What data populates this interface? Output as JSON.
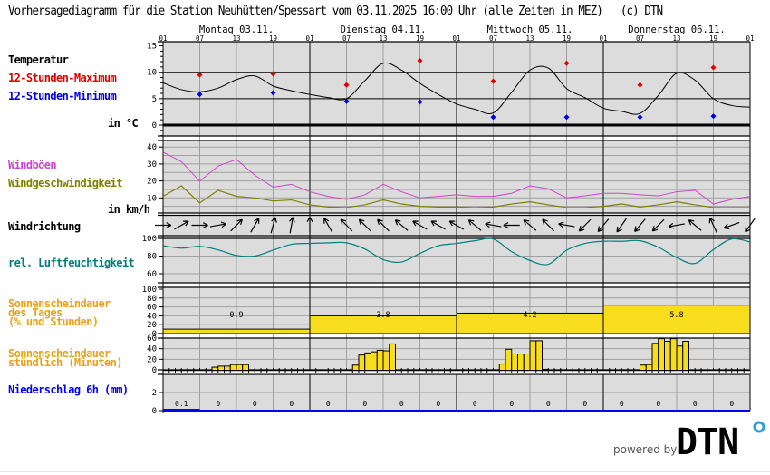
{
  "title": "Vorhersagediagramm für die Station Neuhütten/Spessart vom 03.11.2025 16:00 Uhr (alle Zeiten in MEZ)   (c) DTN",
  "days": [
    "Montag 03.11.",
    "Dienstag 04.11.",
    "Mittwoch 05.11.",
    "Donnerstag 06.11."
  ],
  "hour_ticks": [
    "01",
    "07",
    "13",
    "19",
    "01",
    "07",
    "13",
    "19",
    "01",
    "07",
    "13",
    "19",
    "01",
    "07",
    "13",
    "19",
    "01"
  ],
  "labels": {
    "temperature": "Temperatur",
    "max": "12-Stunden-Maximum",
    "min": "12-Stunden-Minimum",
    "temp_unit": "in °C",
    "gusts": "Windböen",
    "wind_speed": "Windgeschwindigkeit",
    "wind_unit": "in km/h",
    "wind_dir": "Windrichtung",
    "humidity": "rel. Luftfeuchtigkeit",
    "sun_daily": "Sonnenscheindauer\ndes Tages\n(% und Stunden)",
    "sun_hourly": "Sonnenscheindauer\nstündlich (Minuten)",
    "precip": "Niederschlag 6h (mm)"
  },
  "colors": {
    "max": "#e00000",
    "min": "#0000e0",
    "gusts": "#cc44cc",
    "wind_speed": "#808000",
    "humidity": "#008080",
    "sun_label": "#e8a317",
    "sun_fill": "#f8dc1e",
    "precip": "#0000ff",
    "panel_bg": "#dcdcdc"
  },
  "footer": {
    "powered_by": "powered by",
    "logo": "DTN"
  },
  "chart_data": {
    "type": "line",
    "times": [
      "03.11. 01:00",
      "03.11. 04:00",
      "03.11. 07:00",
      "03.11. 10:00",
      "03.11. 13:00",
      "03.11. 16:00",
      "03.11. 19:00",
      "03.11. 22:00",
      "04.11. 01:00",
      "04.11. 04:00",
      "04.11. 07:00",
      "04.11. 10:00",
      "04.11. 13:00",
      "04.11. 16:00",
      "04.11. 19:00",
      "04.11. 22:00",
      "05.11. 01:00",
      "05.11. 04:00",
      "05.11. 07:00",
      "05.11. 10:00",
      "05.11. 13:00",
      "05.11. 16:00",
      "05.11. 19:00",
      "05.11. 22:00",
      "06.11. 01:00",
      "06.11. 04:00",
      "06.11. 07:00",
      "06.11. 10:00",
      "06.11. 13:00",
      "06.11. 16:00",
      "06.11. 19:00",
      "06.11. 22:00",
      "07.11. 01:00"
    ],
    "temperature": {
      "yticks": [
        "0",
        "5",
        "10",
        "15"
      ],
      "ylim": [
        -2,
        15.5
      ],
      "values": [
        8.0,
        6.7,
        6.3,
        7.0,
        8.6,
        9.3,
        7.4,
        6.5,
        5.8,
        5.2,
        5.0,
        8.4,
        11.7,
        10.4,
        7.9,
        5.8,
        4.0,
        3.0,
        2.3,
        6.2,
        10.4,
        10.8,
        6.9,
        5.2,
        3.2,
        2.6,
        2.2,
        5.6,
        9.8,
        8.5,
        5.0,
        3.7,
        3.4
      ],
      "max_12h": [
        {
          "time": "03.11. 07:00",
          "value": 9.5
        },
        {
          "time": "03.11. 19:00",
          "value": 9.7
        },
        {
          "time": "04.11. 07:00",
          "value": 7.6
        },
        {
          "time": "04.11. 19:00",
          "value": 12.2
        },
        {
          "time": "05.11. 07:00",
          "value": 8.3
        },
        {
          "time": "05.11. 19:00",
          "value": 11.7
        },
        {
          "time": "06.11. 07:00",
          "value": 7.6
        },
        {
          "time": "06.11. 19:00",
          "value": 10.9
        }
      ],
      "min_12h": [
        {
          "time": "03.11. 07:00",
          "value": 5.8
        },
        {
          "time": "03.11. 19:00",
          "value": 6.1
        },
        {
          "time": "04.11. 07:00",
          "value": 4.5
        },
        {
          "time": "04.11. 19:00",
          "value": 4.4
        },
        {
          "time": "05.11. 07:00",
          "value": 1.5
        },
        {
          "time": "05.11. 19:00",
          "value": 1.5
        },
        {
          "time": "06.11. 07:00",
          "value": 1.5
        },
        {
          "time": "06.11. 19:00",
          "value": 1.7
        }
      ]
    },
    "wind": {
      "yticks": [
        "10",
        "20",
        "30",
        "40"
      ],
      "ylim": [
        1,
        44
      ],
      "gusts": [
        37,
        31.4,
        19.8,
        28.8,
        32.7,
        23.4,
        16.3,
        18,
        13.6,
        10.9,
        9.1,
        11.8,
        18,
        13.6,
        10,
        10.9,
        11.8,
        10.9,
        10.9,
        12.7,
        17.1,
        15.4,
        10,
        11.2,
        12.7,
        12.7,
        11.8,
        11.2,
        13.6,
        14.5,
        6.4,
        9.1,
        10.9
      ],
      "speed": [
        10.9,
        17.1,
        7,
        14.5,
        10.9,
        10,
        8.2,
        8.8,
        5.9,
        4.6,
        4.3,
        5.9,
        8.8,
        6.4,
        5,
        4.6,
        4.6,
        4.3,
        4.6,
        6.4,
        7.7,
        5.9,
        4.3,
        4.3,
        5,
        6.4,
        4.6,
        5.9,
        7.7,
        5.9,
        4.3,
        4.3,
        4.3
      ]
    },
    "wind_direction_arrow_deg": [
      90,
      60,
      90,
      80,
      45,
      30,
      15,
      10,
      0,
      -30,
      -45,
      -45,
      -45,
      -50,
      -60,
      -60,
      -60,
      -50,
      -80,
      -90,
      -50,
      -45,
      -80,
      -135,
      -140,
      -145,
      -140,
      -135,
      -100,
      -50,
      -25,
      -110,
      -145
    ],
    "humidity": {
      "yticks": [
        "60",
        "80",
        "100"
      ],
      "ylim": [
        50,
        100
      ],
      "values": [
        91.7,
        89,
        91,
        87,
        80.7,
        80,
        86.7,
        93.3,
        94.3,
        95,
        95,
        88,
        76,
        73.3,
        83,
        91.7,
        94.3,
        97.3,
        99.3,
        85,
        75,
        70.7,
        86.7,
        94.3,
        96.7,
        96.7,
        97.3,
        90,
        78.3,
        71.7,
        87.3,
        99.3,
        96
      ]
    },
    "sunshine_daily": {
      "yticks": [
        "0",
        "20",
        "40",
        "60",
        "80",
        "100"
      ],
      "days": [
        {
          "percent": 10,
          "hours": "0.9"
        },
        {
          "percent": 40,
          "hours": "3.8"
        },
        {
          "percent": 46,
          "hours": "4.2"
        },
        {
          "percent": 64,
          "hours": "5.8"
        }
      ]
    },
    "sunshine_hourly": {
      "yticks": [
        "0",
        "20",
        "40",
        "60"
      ],
      "bars": [
        {
          "time": "03.11. 10:00",
          "value": 5
        },
        {
          "time": "03.11. 11:00",
          "value": 7
        },
        {
          "time": "03.11. 12:00",
          "value": 7
        },
        {
          "time": "03.11. 13:00",
          "value": 10
        },
        {
          "time": "03.11. 14:00",
          "value": 10
        },
        {
          "time": "03.11. 15:00",
          "value": 10
        },
        {
          "time": "04.11. 09:00",
          "value": 9
        },
        {
          "time": "04.11. 10:00",
          "value": 28
        },
        {
          "time": "04.11. 11:00",
          "value": 32
        },
        {
          "time": "04.11. 12:00",
          "value": 34
        },
        {
          "time": "04.11. 13:00",
          "value": 37
        },
        {
          "time": "04.11. 14:00",
          "value": 36
        },
        {
          "time": "04.11. 15:00",
          "value": 49
        },
        {
          "time": "05.11. 09:00",
          "value": 11
        },
        {
          "time": "05.11. 10:00",
          "value": 39
        },
        {
          "time": "05.11. 11:00",
          "value": 30
        },
        {
          "time": "05.11. 12:00",
          "value": 30
        },
        {
          "time": "05.11. 13:00",
          "value": 30
        },
        {
          "time": "05.11. 14:00",
          "value": 55
        },
        {
          "time": "05.11. 15:00",
          "value": 55
        },
        {
          "time": "05.11. 16:00",
          "value": 1
        },
        {
          "time": "06.11. 08:00",
          "value": 9
        },
        {
          "time": "06.11. 09:00",
          "value": 10
        },
        {
          "time": "06.11. 10:00",
          "value": 50
        },
        {
          "time": "06.11. 11:00",
          "value": 59
        },
        {
          "time": "06.11. 12:00",
          "value": 54
        },
        {
          "time": "06.11. 13:00",
          "value": 59
        },
        {
          "time": "06.11. 14:00",
          "value": 45
        },
        {
          "time": "06.11. 15:00",
          "value": 54
        }
      ]
    },
    "precipitation_6h": {
      "yticks": [
        "0",
        "2"
      ],
      "values": [
        "0.1",
        "0",
        "0",
        "0",
        "0",
        "0",
        "0",
        "0",
        "0",
        "0",
        "0",
        "0",
        "0",
        "0",
        "0",
        "0"
      ]
    }
  }
}
